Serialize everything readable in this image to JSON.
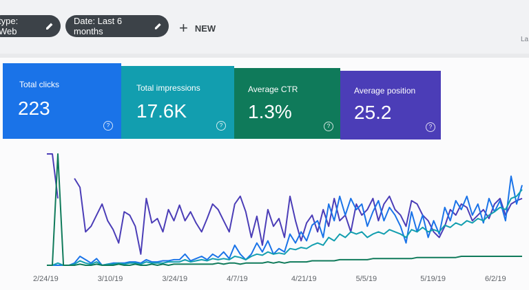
{
  "filters": {
    "type_chip_label": "type: Web",
    "date_chip_label": "Date: Last 6 months",
    "new_label": "NEW",
    "edge_label": "La"
  },
  "metrics": {
    "clicks": {
      "label": "Total clicks",
      "value": "223",
      "color": "#1a73e8"
    },
    "impressions": {
      "label": "Total impressions",
      "value": "17.6K",
      "color": "#129eaf"
    },
    "ctr": {
      "label": "Average CTR",
      "value": "1.3%",
      "color": "#0f7a5a"
    },
    "position": {
      "label": "Average position",
      "value": "25.2",
      "color": "#4b3db7"
    },
    "help_glyph": "?"
  },
  "chart_data": {
    "type": "line",
    "x_ticks": [
      "2/24/19",
      "3/10/19",
      "3/24/19",
      "4/7/19",
      "4/21/19",
      "5/5/19",
      "5/19/19",
      "6/2/19"
    ],
    "ylim": [
      0,
      100
    ],
    "grid": false,
    "series": [
      {
        "color": "#4b3db7",
        "values": [
          100,
          100,
          60,
          null,
          null,
          78,
          70,
          30,
          35,
          45,
          55,
          40,
          32,
          20,
          48,
          45,
          35,
          10,
          60,
          38,
          42,
          30,
          50,
          40,
          54,
          40,
          48,
          38,
          30,
          42,
          55,
          50,
          40,
          30,
          55,
          62,
          48,
          25,
          44,
          18,
          50,
          35,
          42,
          25,
          62,
          40,
          22,
          38,
          45,
          30,
          50,
          35,
          60,
          40,
          45,
          30,
          55,
          45,
          50,
          60,
          40,
          55,
          62,
          50,
          45,
          35,
          58,
          55,
          45,
          40,
          30,
          25,
          35,
          50,
          45,
          55,
          52,
          40,
          45,
          50,
          42,
          55,
          60,
          45,
          55,
          58,
          60
        ]
      },
      {
        "color": "#1a73e8",
        "values": [
          0,
          0,
          0,
          0,
          0,
          2,
          8,
          5,
          2,
          6,
          0,
          1,
          2,
          2,
          2,
          3,
          3,
          2,
          5,
          3,
          3,
          4,
          4,
          5,
          5,
          10,
          4,
          6,
          8,
          5,
          10,
          7,
          12,
          6,
          18,
          10,
          5,
          10,
          20,
          12,
          22,
          10,
          15,
          12,
          28,
          20,
          30,
          22,
          36,
          40,
          25,
          55,
          40,
          62,
          45,
          60,
          50,
          55,
          35,
          48,
          58,
          40,
          52,
          45,
          35,
          20,
          48,
          30,
          45,
          25,
          40,
          28,
          52,
          40,
          58,
          50,
          62,
          45,
          55,
          38,
          60,
          48,
          58,
          40,
          80,
          55,
          72
        ]
      },
      {
        "color": "#129eaf",
        "values": [
          0,
          0,
          2,
          0,
          0,
          1,
          4,
          2,
          1,
          3,
          0,
          1,
          1,
          2,
          1,
          2,
          2,
          1,
          3,
          2,
          2,
          2,
          3,
          3,
          3,
          5,
          3,
          4,
          5,
          4,
          6,
          5,
          6,
          5,
          8,
          7,
          5,
          8,
          10,
          9,
          12,
          10,
          11,
          10,
          15,
          14,
          16,
          15,
          18,
          20,
          18,
          25,
          22,
          28,
          25,
          30,
          28,
          30,
          25,
          28,
          30,
          28,
          32,
          30,
          28,
          25,
          32,
          30,
          34,
          30,
          32,
          30,
          36,
          34,
          38,
          36,
          40,
          38,
          42,
          40,
          45,
          48,
          52,
          50,
          60,
          62,
          68
        ]
      },
      {
        "color": "#0f7a5a",
        "values": [
          0,
          0,
          100,
          0,
          0,
          0,
          1,
          0,
          0,
          1,
          0,
          0,
          0,
          1,
          0,
          0,
          1,
          0,
          0,
          1,
          0,
          1,
          0,
          1,
          1,
          1,
          1,
          1,
          1,
          1,
          1,
          2,
          1,
          2,
          2,
          1,
          2,
          2,
          2,
          2,
          3,
          2,
          3,
          2,
          3,
          3,
          3,
          3,
          4,
          4,
          4,
          4,
          4,
          5,
          5,
          5,
          5,
          5,
          5,
          6,
          6,
          6,
          6,
          6,
          6,
          6,
          6,
          7,
          7,
          7,
          7,
          7,
          7,
          7,
          7,
          8,
          8,
          8,
          8,
          8,
          8,
          8,
          8,
          8,
          8,
          8,
          8
        ]
      }
    ]
  }
}
